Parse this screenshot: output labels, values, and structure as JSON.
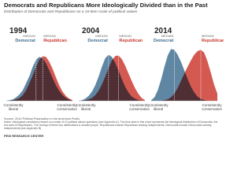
{
  "header": {
    "title": "Democrats and Republicans More Ideologically Divided than in the Past",
    "subtitle": "Distribution of Democrats and Republicans on a 10-item scale of political values"
  },
  "chart_data": [
    {
      "type": "area",
      "title": "1994",
      "median_label": "MEDIAN",
      "x": [
        -10,
        -9,
        -8,
        -7,
        -6,
        -5,
        -4,
        -3,
        -2,
        -1,
        0,
        1,
        2,
        3,
        4,
        5,
        6,
        7,
        8,
        9,
        10
      ],
      "xlim": [
        -10,
        10
      ],
      "ylim": [
        0,
        8
      ],
      "x_end_labels": [
        "Consistently liberal",
        "Consistently conservative"
      ],
      "series": [
        {
          "name": "Democrat",
          "color": "#3c6b8f",
          "median": -1,
          "values": [
            0,
            0.1,
            0.2,
            0.5,
            0.9,
            1.5,
            2.5,
            3.5,
            4.8,
            5.8,
            6.2,
            6.0,
            5.3,
            4.3,
            3.2,
            2.2,
            1.4,
            0.8,
            0.4,
            0.2,
            0
          ]
        },
        {
          "name": "Republican",
          "color": "#c9352b",
          "median": 1,
          "values": [
            0,
            0,
            0.1,
            0.2,
            0.4,
            0.8,
            1.5,
            2.5,
            3.6,
            4.8,
            5.8,
            6.3,
            6.2,
            5.5,
            4.5,
            3.3,
            2.2,
            1.3,
            0.7,
            0.3,
            0.1
          ]
        }
      ]
    },
    {
      "type": "area",
      "title": "2004",
      "median_label": "MEDIAN",
      "x": [
        -10,
        -9,
        -8,
        -7,
        -6,
        -5,
        -4,
        -3,
        -2,
        -1,
        0,
        1,
        2,
        3,
        4,
        5,
        6,
        7,
        8,
        9,
        10
      ],
      "xlim": [
        -10,
        10
      ],
      "ylim": [
        0,
        8
      ],
      "x_end_labels": [
        "Consistently liberal",
        "Consistently conservative"
      ],
      "series": [
        {
          "name": "Democrat",
          "color": "#3c6b8f",
          "median": -1,
          "values": [
            0,
            0.1,
            0.3,
            0.7,
            1.3,
            2.2,
            3.4,
            4.8,
            6.0,
            6.5,
            6.2,
            5.4,
            4.3,
            3.1,
            2.0,
            1.2,
            0.6,
            0.3,
            0.1,
            0,
            0
          ]
        },
        {
          "name": "Republican",
          "color": "#c9352b",
          "median": 2,
          "values": [
            0,
            0,
            0.1,
            0.2,
            0.4,
            0.8,
            1.4,
            2.3,
            3.4,
            4.6,
            5.7,
            6.3,
            6.4,
            5.9,
            5.0,
            3.9,
            2.8,
            1.8,
            1.0,
            0.4,
            0.1
          ]
        }
      ]
    },
    {
      "type": "area",
      "title": "2014",
      "median_label": "MEDIAN",
      "x": [
        -10,
        -9,
        -8,
        -7,
        -6,
        -5,
        -4,
        -3,
        -2,
        -1,
        0,
        1,
        2,
        3,
        4,
        5,
        6,
        7,
        8,
        9,
        10
      ],
      "xlim": [
        -10,
        10
      ],
      "ylim": [
        0,
        8
      ],
      "x_end_labels": [
        "Consistently liberal",
        "Consistently conservative"
      ],
      "series": [
        {
          "name": "Democrat",
          "color": "#3c6b8f",
          "median": -3,
          "values": [
            0.1,
            0.5,
            1.5,
            3.0,
            4.8,
            6.4,
            7.3,
            7.2,
            6.5,
            5.5,
            4.3,
            3.1,
            2.0,
            1.2,
            0.6,
            0.3,
            0.1,
            0,
            0,
            0,
            0
          ]
        },
        {
          "name": "Republican",
          "color": "#c9352b",
          "median": 5,
          "values": [
            0,
            0,
            0,
            0,
            0.1,
            0.2,
            0.5,
            1.0,
            1.8,
            2.8,
            3.8,
            4.8,
            5.7,
            6.5,
            7.0,
            7.2,
            6.8,
            5.6,
            4.0,
            2.3,
            1.0
          ]
        }
      ]
    }
  ],
  "footer": {
    "source": "Source: 2014 Political Polarization in the American Public",
    "notes": "Notes: Ideological consistency based on a scale of 10 political values questions (see Appendix A). The blue area in this chart represents the ideological distribution of Democrats; the red area of Republicans. The overlap of these two distributions is shaded purple. Republicans include Republican-leaning independents; Democrats include Democratic-leaning independents (see Appendix B).",
    "brand": "PEW RESEARCH CENTER"
  }
}
